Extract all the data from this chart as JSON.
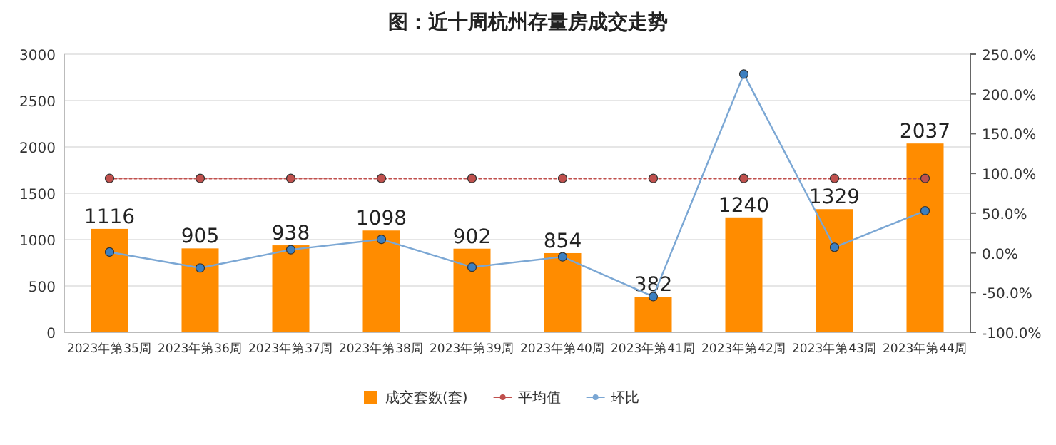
{
  "chart_data": {
    "type": "bar",
    "title": "图：近十周杭州存量房成交走势",
    "categories": [
      "2023年第35周",
      "2023年第36周",
      "2023年第37周",
      "2023年第38周",
      "2023年第39周",
      "2023年第40周",
      "2023年第41周",
      "2023年第42周",
      "2023年第43周",
      "2023年第44周"
    ],
    "series": [
      {
        "name": "成交套数(套)",
        "color": "#ff8c00",
        "values": [
          1116,
          905,
          938,
          1098,
          902,
          854,
          382,
          1240,
          1329,
          2037
        ],
        "value_labels": [
          "1116",
          "905",
          "938",
          "1098",
          "902",
          "854",
          "382",
          "1240",
          "1329",
          "2037"
        ]
      },
      {
        "name": "平均值",
        "type": "line",
        "color": "#c0504d",
        "line_style": "dotted",
        "marker": "circle",
        "values": [
          1660,
          1660,
          1660,
          1660,
          1660,
          1660,
          1660,
          1660,
          1660,
          1660
        ]
      },
      {
        "name": "环比",
        "type": "line",
        "axis": "y2",
        "color": "#7ba7d4",
        "line_style": "solid",
        "marker": "circle",
        "values": [
          1,
          -19,
          4,
          17,
          -18,
          -5,
          -55,
          225,
          7,
          53
        ]
      }
    ],
    "ylim": [
      0,
      3000
    ],
    "yticks": [
      0,
      500,
      1000,
      1500,
      2000,
      2500,
      3000
    ],
    "y2lim": [
      -100,
      250
    ],
    "y2ticks": [
      {
        "value": -100,
        "label": "-100.0%"
      },
      {
        "value": -50,
        "label": "-50.0%"
      },
      {
        "value": 0,
        "label": "0.0%"
      },
      {
        "value": 50,
        "label": "50.0%"
      },
      {
        "value": 100,
        "label": "100.0%"
      },
      {
        "value": 150,
        "label": "150.0%"
      },
      {
        "value": 200,
        "label": "200.0%"
      },
      {
        "value": 250,
        "label": "250.0%"
      }
    ],
    "grid": "y",
    "legend": "bottom"
  }
}
